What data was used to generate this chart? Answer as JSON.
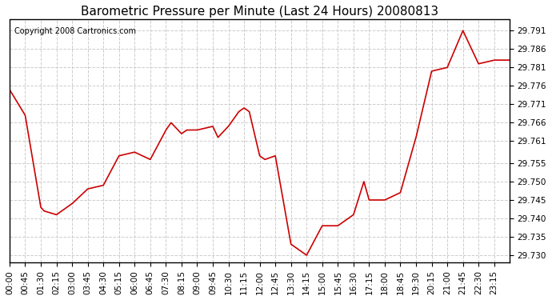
{
  "title": "Barometric Pressure per Minute (Last 24 Hours) 20080813",
  "copyright": "Copyright 2008 Cartronics.com",
  "line_color": "#cc0000",
  "bg_color": "#ffffff",
  "grid_color": "#cccccc",
  "ylim": [
    29.728,
    29.794
  ],
  "yticks": [
    29.73,
    29.735,
    29.74,
    29.745,
    29.75,
    29.755,
    29.761,
    29.766,
    29.771,
    29.776,
    29.781,
    29.786,
    29.791
  ],
  "xtick_labels": [
    "00:00",
    "00:45",
    "01:30",
    "02:15",
    "03:00",
    "03:45",
    "04:30",
    "05:15",
    "06:00",
    "06:45",
    "07:30",
    "08:15",
    "09:00",
    "09:45",
    "10:30",
    "11:15",
    "12:00",
    "12:45",
    "13:30",
    "14:15",
    "15:00",
    "15:45",
    "16:30",
    "17:15",
    "18:00",
    "18:45",
    "19:30",
    "20:15",
    "21:00",
    "21:45",
    "22:30",
    "23:15"
  ],
  "key_times": [
    0,
    45,
    90,
    100,
    135,
    180,
    225,
    270,
    315,
    360,
    405,
    450,
    465,
    495,
    510,
    540,
    585,
    600,
    630,
    660,
    675,
    690,
    720,
    735,
    765,
    810,
    855,
    900,
    945,
    990,
    1020,
    1035,
    1080,
    1125,
    1170,
    1215,
    1260,
    1305,
    1320,
    1350,
    1395,
    1439
  ],
  "key_values": [
    29.775,
    29.768,
    29.743,
    29.742,
    29.741,
    29.744,
    29.748,
    29.749,
    29.757,
    29.758,
    29.756,
    29.764,
    29.766,
    29.763,
    29.764,
    29.764,
    29.765,
    29.762,
    29.765,
    29.769,
    29.77,
    29.769,
    29.757,
    29.756,
    29.757,
    29.733,
    29.73,
    29.738,
    29.738,
    29.741,
    29.75,
    29.745,
    29.745,
    29.747,
    29.762,
    29.78,
    29.781,
    29.791,
    29.788,
    29.782,
    29.783,
    29.783
  ]
}
